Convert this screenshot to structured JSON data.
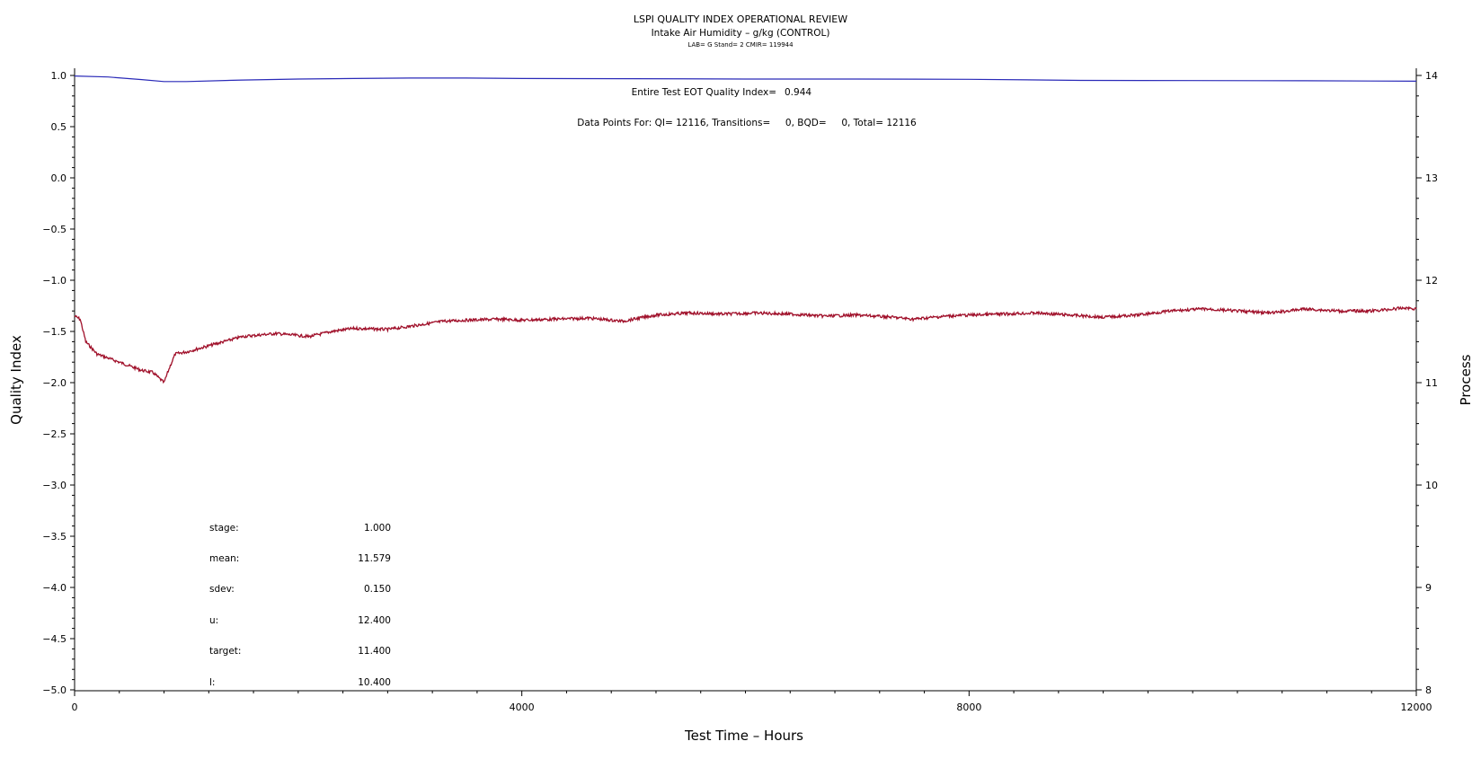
{
  "header": {
    "title": "LSPI QUALITY INDEX OPERATIONAL REVIEW",
    "subtitle": "Intake Air Humidity – g/kg (CONTROL)",
    "meta": "LAB= G Stand= 2 CMIR= 119944"
  },
  "info": {
    "eot_label": "Entire Test EOT Quality Index=",
    "eot_value": "0.944",
    "points_text": "Data Points For: QI= 12116, Transitions=     0, BQD=     0, Total= 12116"
  },
  "stats": [
    {
      "label": "stage:",
      "value": "1.000"
    },
    {
      "label": "mean:",
      "value": "11.579"
    },
    {
      "label": "sdev:",
      "value": "0.150"
    },
    {
      "label": "u:",
      "value": "12.400"
    },
    {
      "label": "target:",
      "value": "11.400"
    },
    {
      "label": "l:",
      "value": "10.400"
    }
  ],
  "colors": {
    "quality_line": "#2a2ab8",
    "process_line": "#a0102a",
    "axis": "#000000"
  },
  "chart_data": {
    "type": "line",
    "title": "LSPI QUALITY INDEX OPERATIONAL REVIEW",
    "subtitle": "Intake Air Humidity – g/kg (CONTROL)",
    "xlabel": "Test Time – Hours",
    "ylabel": "Quality Index",
    "y2label": "Process",
    "xlim": [
      0,
      12000
    ],
    "ylim": [
      -5.0,
      1.0
    ],
    "y2lim": [
      8,
      14
    ],
    "x_ticks": [
      0,
      4000,
      8000,
      12000
    ],
    "y_ticks": [
      "1.0",
      "0.5",
      "0.0",
      "-0.5",
      "-1.0",
      "-1.5",
      "-2.0",
      "-2.5",
      "-3.0",
      "-3.5",
      "-4.0",
      "-4.5",
      "-5.0"
    ],
    "y2_ticks": [
      "14",
      "13",
      "12",
      "11",
      "10",
      "9",
      "8"
    ],
    "grid": false,
    "series": [
      {
        "axis": "left",
        "x": [
          0,
          300,
          600,
          800,
          1000,
          1500,
          2000,
          2500,
          3000,
          3500,
          4000,
          5000,
          6000,
          7000,
          8000,
          8700,
          9000,
          10000,
          11000,
          12000
        ],
        "y": [
          0.995,
          0.985,
          0.96,
          0.94,
          0.94,
          0.955,
          0.965,
          0.97,
          0.975,
          0.975,
          0.97,
          0.968,
          0.965,
          0.965,
          0.962,
          0.955,
          0.952,
          0.95,
          0.948,
          0.944
        ]
      },
      {
        "axis": "right",
        "x": [
          0,
          50,
          100,
          200,
          400,
          600,
          700,
          800,
          850,
          900,
          1000,
          1200,
          1500,
          1800,
          2000,
          2100,
          2300,
          2500,
          2800,
          3000,
          3300,
          3500,
          3800,
          4000,
          4300,
          4600,
          4900,
          5200,
          5500,
          5800,
          6100,
          6400,
          6700,
          7000,
          7300,
          7500,
          7800,
          8000,
          8300,
          8600,
          8900,
          9200,
          9500,
          9800,
          10100,
          10400,
          10700,
          11000,
          11300,
          11600,
          11900,
          12000
        ],
        "y": [
          11.65,
          11.62,
          11.4,
          11.28,
          11.2,
          11.12,
          11.1,
          11.0,
          11.15,
          11.28,
          11.3,
          11.36,
          11.45,
          11.48,
          11.46,
          11.45,
          11.5,
          11.53,
          11.52,
          11.55,
          11.6,
          11.61,
          11.62,
          11.61,
          11.62,
          11.63,
          11.6,
          11.66,
          11.68,
          11.67,
          11.68,
          11.67,
          11.65,
          11.66,
          11.64,
          11.62,
          11.65,
          11.66,
          11.67,
          11.68,
          11.66,
          11.64,
          11.66,
          11.7,
          11.72,
          11.7,
          11.68,
          11.72,
          11.7,
          11.7,
          11.73,
          11.72
        ]
      }
    ]
  }
}
